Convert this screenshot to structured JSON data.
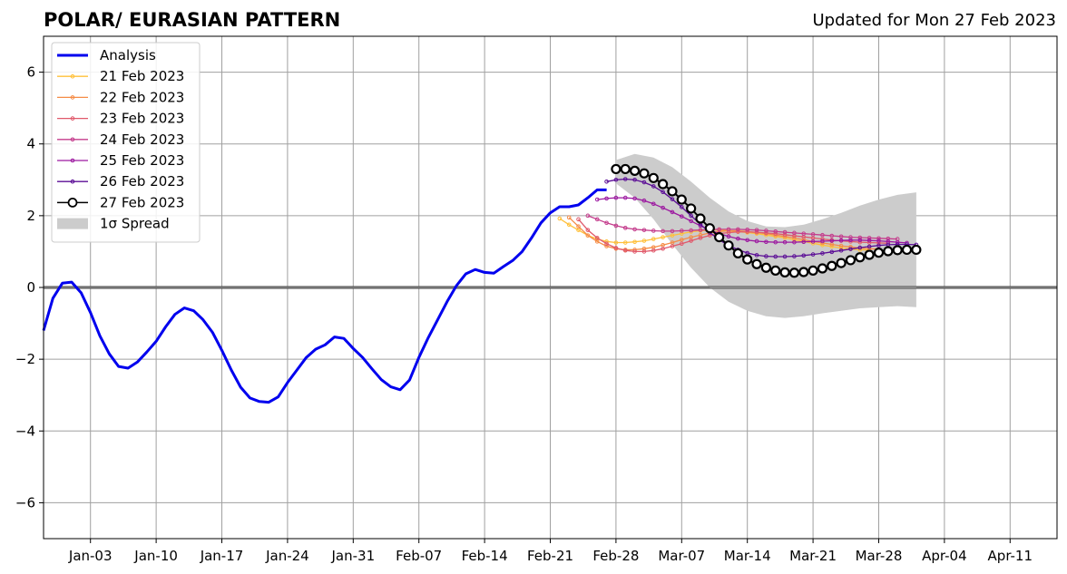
{
  "title": "POLAR/ EURASIAN  PATTERN",
  "updated": "Updated for Mon 27 Feb 2023",
  "chart_data": {
    "type": "line",
    "title": "POLAR/ EURASIAN  PATTERN",
    "xlabel": "",
    "ylabel": "",
    "ylim": [
      -7,
      7
    ],
    "yticks": [
      -6,
      -4,
      -2,
      0,
      2,
      4,
      6
    ],
    "ytick_labels": [
      "−6",
      "−4",
      "−2",
      "0",
      "2",
      "4",
      "6"
    ],
    "xlim": [
      "2022-12-29",
      "2023-04-16"
    ],
    "xticks": [
      "2023-01-03",
      "2023-01-10",
      "2023-01-17",
      "2023-01-24",
      "2023-01-31",
      "2023-02-07",
      "2023-02-14",
      "2023-02-21",
      "2023-02-28",
      "2023-03-07",
      "2023-03-14",
      "2023-03-21",
      "2023-03-28",
      "2023-04-04",
      "2023-04-11"
    ],
    "xtick_labels": [
      "Jan-03",
      "Jan-10",
      "Jan-17",
      "Jan-24",
      "Jan-31",
      "Feb-07",
      "Feb-14",
      "Feb-21",
      "Feb-28",
      "Mar-07",
      "Mar-14",
      "Mar-21",
      "Mar-28",
      "Apr-04",
      "Apr-11"
    ],
    "grid": true,
    "legend_position": "top-left",
    "zero_line": 0,
    "spread": {
      "name": "1σ Spread",
      "color": "#cccccc",
      "x": [
        "2023-02-28",
        "2023-03-02",
        "2023-03-04",
        "2023-03-06",
        "2023-03-08",
        "2023-03-10",
        "2023-03-12",
        "2023-03-14",
        "2023-03-16",
        "2023-03-18",
        "2023-03-20",
        "2023-03-22",
        "2023-03-24",
        "2023-03-26",
        "2023-03-28",
        "2023-03-30",
        "2023-04-01"
      ],
      "upper": [
        3.55,
        3.72,
        3.62,
        3.35,
        2.95,
        2.5,
        2.12,
        1.85,
        1.7,
        1.68,
        1.75,
        1.9,
        2.08,
        2.28,
        2.45,
        2.58,
        2.65
      ],
      "lower": [
        2.9,
        2.5,
        1.9,
        1.2,
        0.55,
        0.0,
        -0.4,
        -0.65,
        -0.8,
        -0.85,
        -0.8,
        -0.72,
        -0.65,
        -0.58,
        -0.55,
        -0.52,
        -0.55
      ]
    },
    "series": [
      {
        "name": "Analysis",
        "color": "#0000ee",
        "x": [
          "2022-12-29",
          "2022-12-30",
          "2022-12-31",
          "2023-01-01",
          "2023-01-02",
          "2023-01-03",
          "2023-01-04",
          "2023-01-05",
          "2023-01-06",
          "2023-01-07",
          "2023-01-08",
          "2023-01-09",
          "2023-01-10",
          "2023-01-11",
          "2023-01-12",
          "2023-01-13",
          "2023-01-14",
          "2023-01-15",
          "2023-01-16",
          "2023-01-17",
          "2023-01-18",
          "2023-01-19",
          "2023-01-20",
          "2023-01-21",
          "2023-01-22",
          "2023-01-23",
          "2023-01-24",
          "2023-01-25",
          "2023-01-26",
          "2023-01-27",
          "2023-01-28",
          "2023-01-29",
          "2023-01-30",
          "2023-01-31",
          "2023-02-01",
          "2023-02-02",
          "2023-02-03",
          "2023-02-04",
          "2023-02-05",
          "2023-02-06",
          "2023-02-07",
          "2023-02-08",
          "2023-02-09",
          "2023-02-10",
          "2023-02-11",
          "2023-02-12",
          "2023-02-13",
          "2023-02-14",
          "2023-02-15",
          "2023-02-16",
          "2023-02-17",
          "2023-02-18",
          "2023-02-19",
          "2023-02-20",
          "2023-02-21",
          "2023-02-22",
          "2023-02-23",
          "2023-02-24",
          "2023-02-25",
          "2023-02-26",
          "2023-02-27"
        ],
        "y": [
          -1.2,
          -0.3,
          0.12,
          0.15,
          -0.15,
          -0.7,
          -1.35,
          -1.85,
          -2.2,
          -2.25,
          -2.08,
          -1.8,
          -1.5,
          -1.1,
          -0.75,
          -0.57,
          -0.65,
          -0.9,
          -1.25,
          -1.75,
          -2.3,
          -2.78,
          -3.08,
          -3.18,
          -3.2,
          -3.05,
          -2.65,
          -2.3,
          -1.95,
          -1.72,
          -1.6,
          -1.38,
          -1.42,
          -1.7,
          -1.95,
          -2.27,
          -2.57,
          -2.77,
          -2.85,
          -2.58,
          -1.95,
          -1.4,
          -0.9,
          -0.4,
          0.05,
          0.38,
          0.5,
          0.42,
          0.4,
          0.58,
          0.75,
          1.0,
          1.38,
          1.8,
          2.08,
          2.25,
          2.25,
          2.3,
          2.5,
          2.72,
          2.72
        ]
      },
      {
        "name": "21 Feb 2023",
        "color": "#ffc03a",
        "x": [
          "2023-02-22",
          "2023-02-23",
          "2023-02-24",
          "2023-02-25",
          "2023-02-26",
          "2023-02-27",
          "2023-02-28",
          "2023-03-01",
          "2023-03-02",
          "2023-03-03",
          "2023-03-04",
          "2023-03-05",
          "2023-03-06",
          "2023-03-07",
          "2023-03-08",
          "2023-03-09",
          "2023-03-10",
          "2023-03-11",
          "2023-03-12",
          "2023-03-13",
          "2023-03-14",
          "2023-03-15",
          "2023-03-16",
          "2023-03-17",
          "2023-03-18",
          "2023-03-19",
          "2023-03-20",
          "2023-03-21",
          "2023-03-22",
          "2023-03-23",
          "2023-03-24",
          "2023-03-25",
          "2023-03-26",
          "2023-03-27"
        ],
        "y": [
          1.92,
          1.75,
          1.6,
          1.45,
          1.35,
          1.28,
          1.25,
          1.25,
          1.27,
          1.3,
          1.35,
          1.4,
          1.45,
          1.5,
          1.55,
          1.58,
          1.6,
          1.6,
          1.58,
          1.56,
          1.53,
          1.5,
          1.46,
          1.42,
          1.38,
          1.33,
          1.28,
          1.23,
          1.18,
          1.14,
          1.1,
          1.07,
          1.05,
          1.04
        ]
      },
      {
        "name": "22 Feb 2023",
        "color": "#f58c47",
        "x": [
          "2023-02-23",
          "2023-02-24",
          "2023-02-25",
          "2023-02-26",
          "2023-02-27",
          "2023-02-28",
          "2023-03-01",
          "2023-03-02",
          "2023-03-03",
          "2023-03-04",
          "2023-03-05",
          "2023-03-06",
          "2023-03-07",
          "2023-03-08",
          "2023-03-09",
          "2023-03-10",
          "2023-03-11",
          "2023-03-12",
          "2023-03-13",
          "2023-03-14",
          "2023-03-15",
          "2023-03-16",
          "2023-03-17",
          "2023-03-18",
          "2023-03-19",
          "2023-03-20",
          "2023-03-21",
          "2023-03-22",
          "2023-03-23",
          "2023-03-24",
          "2023-03-25",
          "2023-03-26",
          "2023-03-27",
          "2023-03-28"
        ],
        "y": [
          1.95,
          1.7,
          1.45,
          1.28,
          1.15,
          1.08,
          1.05,
          1.05,
          1.08,
          1.12,
          1.18,
          1.25,
          1.33,
          1.4,
          1.46,
          1.52,
          1.56,
          1.58,
          1.58,
          1.56,
          1.53,
          1.5,
          1.46,
          1.42,
          1.38,
          1.33,
          1.28,
          1.24,
          1.2,
          1.16,
          1.13,
          1.1,
          1.08,
          1.07
        ]
      },
      {
        "name": "23 Feb 2023",
        "color": "#e0596b",
        "x": [
          "2023-02-24",
          "2023-02-25",
          "2023-02-26",
          "2023-02-27",
          "2023-02-28",
          "2023-03-01",
          "2023-03-02",
          "2023-03-03",
          "2023-03-04",
          "2023-03-05",
          "2023-03-06",
          "2023-03-07",
          "2023-03-08",
          "2023-03-09",
          "2023-03-10",
          "2023-03-11",
          "2023-03-12",
          "2023-03-13",
          "2023-03-14",
          "2023-03-15",
          "2023-03-16",
          "2023-03-17",
          "2023-03-18",
          "2023-03-19",
          "2023-03-20",
          "2023-03-21",
          "2023-03-22",
          "2023-03-23",
          "2023-03-24",
          "2023-03-25",
          "2023-03-26",
          "2023-03-27",
          "2023-03-28",
          "2023-03-29"
        ],
        "y": [
          1.9,
          1.6,
          1.38,
          1.22,
          1.1,
          1.03,
          1.0,
          1.0,
          1.03,
          1.08,
          1.15,
          1.22,
          1.3,
          1.38,
          1.45,
          1.5,
          1.53,
          1.55,
          1.55,
          1.54,
          1.52,
          1.5,
          1.47,
          1.44,
          1.41,
          1.38,
          1.35,
          1.32,
          1.3,
          1.28,
          1.26,
          1.25,
          1.24,
          1.23
        ]
      },
      {
        "name": "24 Feb 2023",
        "color": "#c43c8c",
        "x": [
          "2023-02-25",
          "2023-02-26",
          "2023-02-27",
          "2023-02-28",
          "2023-03-01",
          "2023-03-02",
          "2023-03-03",
          "2023-03-04",
          "2023-03-05",
          "2023-03-06",
          "2023-03-07",
          "2023-03-08",
          "2023-03-09",
          "2023-03-10",
          "2023-03-11",
          "2023-03-12",
          "2023-03-13",
          "2023-03-14",
          "2023-03-15",
          "2023-03-16",
          "2023-03-17",
          "2023-03-18",
          "2023-03-19",
          "2023-03-20",
          "2023-03-21",
          "2023-03-22",
          "2023-03-23",
          "2023-03-24",
          "2023-03-25",
          "2023-03-26",
          "2023-03-27",
          "2023-03-28",
          "2023-03-29",
          "2023-03-30"
        ],
        "y": [
          2.0,
          1.9,
          1.8,
          1.72,
          1.66,
          1.62,
          1.6,
          1.58,
          1.57,
          1.57,
          1.58,
          1.59,
          1.6,
          1.61,
          1.62,
          1.62,
          1.62,
          1.61,
          1.6,
          1.58,
          1.56,
          1.54,
          1.52,
          1.5,
          1.48,
          1.46,
          1.44,
          1.42,
          1.4,
          1.39,
          1.38,
          1.37,
          1.36,
          1.35
        ]
      },
      {
        "name": "25 Feb 2023",
        "color": "#9c17a0",
        "x": [
          "2023-02-26",
          "2023-02-27",
          "2023-02-28",
          "2023-03-01",
          "2023-03-02",
          "2023-03-03",
          "2023-03-04",
          "2023-03-05",
          "2023-03-06",
          "2023-03-07",
          "2023-03-08",
          "2023-03-09",
          "2023-03-10",
          "2023-03-11",
          "2023-03-12",
          "2023-03-13",
          "2023-03-14",
          "2023-03-15",
          "2023-03-16",
          "2023-03-17",
          "2023-03-18",
          "2023-03-19",
          "2023-03-20",
          "2023-03-21",
          "2023-03-22",
          "2023-03-23",
          "2023-03-24",
          "2023-03-25",
          "2023-03-26",
          "2023-03-27",
          "2023-03-28",
          "2023-03-29",
          "2023-03-30",
          "2023-03-31"
        ],
        "y": [
          2.45,
          2.48,
          2.5,
          2.5,
          2.48,
          2.42,
          2.33,
          2.22,
          2.1,
          1.98,
          1.85,
          1.72,
          1.6,
          1.5,
          1.42,
          1.36,
          1.32,
          1.29,
          1.27,
          1.26,
          1.26,
          1.26,
          1.27,
          1.28,
          1.29,
          1.3,
          1.31,
          1.32,
          1.32,
          1.31,
          1.3,
          1.28,
          1.26,
          1.24
        ]
      },
      {
        "name": "26 Feb 2023",
        "color": "#5b0d96",
        "x": [
          "2023-02-27",
          "2023-02-28",
          "2023-03-01",
          "2023-03-02",
          "2023-03-03",
          "2023-03-04",
          "2023-03-05",
          "2023-03-06",
          "2023-03-07",
          "2023-03-08",
          "2023-03-09",
          "2023-03-10",
          "2023-03-11",
          "2023-03-12",
          "2023-03-13",
          "2023-03-14",
          "2023-03-15",
          "2023-03-16",
          "2023-03-17",
          "2023-03-18",
          "2023-03-19",
          "2023-03-20",
          "2023-03-21",
          "2023-03-22",
          "2023-03-23",
          "2023-03-24",
          "2023-03-25",
          "2023-03-26",
          "2023-03-27",
          "2023-03-28",
          "2023-03-29",
          "2023-03-30",
          "2023-03-31",
          "2023-04-01"
        ],
        "y": [
          2.95,
          3.0,
          3.02,
          3.0,
          2.93,
          2.82,
          2.66,
          2.46,
          2.24,
          2.0,
          1.76,
          1.53,
          1.33,
          1.17,
          1.05,
          0.96,
          0.9,
          0.87,
          0.86,
          0.86,
          0.87,
          0.89,
          0.92,
          0.95,
          0.99,
          1.03,
          1.07,
          1.11,
          1.14,
          1.17,
          1.19,
          1.2,
          1.2,
          1.19
        ]
      },
      {
        "name": "27 Feb 2023",
        "color": "#000000",
        "x": [
          "2023-02-28",
          "2023-03-01",
          "2023-03-02",
          "2023-03-03",
          "2023-03-04",
          "2023-03-05",
          "2023-03-06",
          "2023-03-07",
          "2023-03-08",
          "2023-03-09",
          "2023-03-10",
          "2023-03-11",
          "2023-03-12",
          "2023-03-13",
          "2023-03-14",
          "2023-03-15",
          "2023-03-16",
          "2023-03-17",
          "2023-03-18",
          "2023-03-19",
          "2023-03-20",
          "2023-03-21",
          "2023-03-22",
          "2023-03-23",
          "2023-03-24",
          "2023-03-25",
          "2023-03-26",
          "2023-03-27",
          "2023-03-28",
          "2023-03-29",
          "2023-03-30",
          "2023-03-31",
          "2023-04-01"
        ],
        "y": [
          3.3,
          3.3,
          3.25,
          3.18,
          3.05,
          2.88,
          2.68,
          2.45,
          2.2,
          1.92,
          1.65,
          1.4,
          1.17,
          0.95,
          0.78,
          0.65,
          0.55,
          0.47,
          0.42,
          0.41,
          0.43,
          0.47,
          0.53,
          0.6,
          0.68,
          0.76,
          0.84,
          0.91,
          0.97,
          1.01,
          1.04,
          1.05,
          1.05
        ]
      }
    ]
  }
}
